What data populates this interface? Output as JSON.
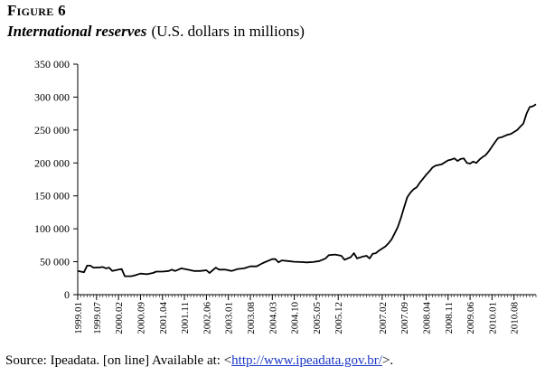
{
  "figure": {
    "label": "Figure 6",
    "title": "International reserves",
    "unit": "(U.S. dollars in millions)"
  },
  "source": {
    "prefix": "Source: Ipeadata. [on line] Available at: <",
    "link_text": "http://www.ipeadata.gov.br/",
    "suffix": ">."
  },
  "chart_data": {
    "type": "line",
    "title": "International reserves",
    "xlabel": "",
    "ylabel": "U.S. dollars in millions",
    "ylim": [
      0,
      350000
    ],
    "grid": false,
    "y_ticks": [
      "0",
      "50 000",
      "100 000",
      "150 000",
      "200 000",
      "250 000",
      "300 000",
      "350 000"
    ],
    "y_tick_values": [
      0,
      50000,
      100000,
      150000,
      200000,
      250000,
      300000,
      350000
    ],
    "x_ticks": [
      "1999.01",
      "1999.07",
      "2000.02",
      "2000.09",
      "2001.04",
      "2001.11",
      "2002.06",
      "2003.01",
      "2003.08",
      "2004.03",
      "2004.10",
      "2005.05",
      "2005.12",
      "2007.02",
      "2007.09",
      "2008.04",
      "2008.11",
      "2009.06",
      "2010.01",
      "2010.08"
    ],
    "x_tick_positions": [
      0,
      6,
      13,
      20,
      27,
      34,
      41,
      48,
      55,
      62,
      69,
      76,
      83,
      97,
      104,
      111,
      118,
      125,
      132,
      139
    ],
    "minor_tick_count": 146,
    "x_range": [
      0,
      146
    ],
    "series": [
      {
        "name": "International reserves",
        "color": "#000000",
        "points": [
          [
            0,
            36000
          ],
          [
            2,
            34000
          ],
          [
            3,
            44000
          ],
          [
            4,
            44000
          ],
          [
            5,
            41000
          ],
          [
            7,
            41500
          ],
          [
            8,
            42000
          ],
          [
            9,
            40000
          ],
          [
            10,
            41000
          ],
          [
            11,
            36000
          ],
          [
            13,
            38000
          ],
          [
            14,
            39000
          ],
          [
            15,
            28000
          ],
          [
            17,
            28000
          ],
          [
            18,
            29000
          ],
          [
            20,
            32000
          ],
          [
            22,
            31000
          ],
          [
            24,
            33000
          ],
          [
            25,
            35000
          ],
          [
            27,
            35000
          ],
          [
            29,
            36000
          ],
          [
            30,
            38000
          ],
          [
            31,
            36000
          ],
          [
            33,
            40000
          ],
          [
            35,
            38000
          ],
          [
            37,
            36000
          ],
          [
            39,
            36000
          ],
          [
            41,
            37000
          ],
          [
            42,
            33000
          ],
          [
            44,
            41000
          ],
          [
            45,
            38000
          ],
          [
            47,
            38000
          ],
          [
            49,
            36000
          ],
          [
            51,
            39000
          ],
          [
            53,
            40000
          ],
          [
            55,
            43000
          ],
          [
            57,
            43000
          ],
          [
            59,
            48000
          ],
          [
            61,
            52000
          ],
          [
            62,
            54000
          ],
          [
            63,
            54000
          ],
          [
            64,
            49000
          ],
          [
            65,
            52000
          ],
          [
            67,
            51000
          ],
          [
            69,
            50000
          ],
          [
            71,
            49500
          ],
          [
            73,
            49000
          ],
          [
            75,
            49500
          ],
          [
            77,
            51000
          ],
          [
            79,
            55000
          ],
          [
            80,
            60000
          ],
          [
            82,
            61000
          ],
          [
            84,
            59000
          ],
          [
            85,
            53000
          ],
          [
            87,
            57000
          ],
          [
            88,
            63000
          ],
          [
            89,
            55000
          ],
          [
            91,
            58000
          ],
          [
            92,
            59000
          ],
          [
            93,
            55000
          ],
          [
            94,
            62000
          ],
          [
            95,
            63000
          ],
          [
            96,
            67000
          ],
          [
            98,
            73000
          ],
          [
            99,
            78000
          ],
          [
            100,
            84000
          ],
          [
            101,
            93000
          ],
          [
            102,
            103000
          ],
          [
            103,
            117000
          ],
          [
            104,
            133000
          ],
          [
            105,
            148000
          ],
          [
            106,
            155000
          ],
          [
            107,
            160000
          ],
          [
            108,
            163000
          ],
          [
            109,
            170000
          ],
          [
            110,
            176000
          ],
          [
            111,
            182000
          ],
          [
            112,
            187000
          ],
          [
            113,
            193000
          ],
          [
            114,
            196000
          ],
          [
            116,
            198000
          ],
          [
            118,
            204000
          ],
          [
            119,
            205000
          ],
          [
            120,
            207000
          ],
          [
            121,
            203000
          ],
          [
            122,
            206000
          ],
          [
            123,
            207000
          ],
          [
            124,
            200000
          ],
          [
            125,
            199000
          ],
          [
            126,
            202000
          ],
          [
            127,
            200000
          ],
          [
            128,
            205000
          ],
          [
            129,
            209000
          ],
          [
            130,
            212000
          ],
          [
            131,
            218000
          ],
          [
            132,
            225000
          ],
          [
            133,
            232000
          ],
          [
            134,
            238000
          ],
          [
            135,
            239000
          ],
          [
            136,
            241000
          ],
          [
            137,
            243000
          ],
          [
            138,
            244000
          ],
          [
            139,
            247000
          ],
          [
            140,
            250000
          ],
          [
            141,
            255000
          ],
          [
            142,
            260000
          ],
          [
            143,
            275000
          ],
          [
            144,
            285000
          ],
          [
            145,
            286000
          ],
          [
            146,
            289000
          ]
        ]
      }
    ]
  }
}
